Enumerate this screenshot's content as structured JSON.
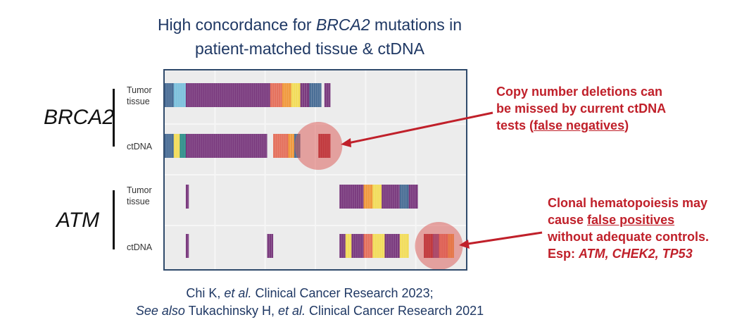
{
  "title": {
    "line1_prefix": "High concordance for ",
    "line1_gene": "BRCA2",
    "line1_suffix": " mutations in",
    "line2": "patient-matched tissue & ctDNA"
  },
  "genes": [
    {
      "name": "BRCA2",
      "rows": [
        "Tumor tissue",
        "ctDNA"
      ]
    },
    {
      "name": "ATM",
      "rows": [
        "Tumor tissue",
        "ctDNA"
      ]
    }
  ],
  "annotations": {
    "false_negatives": {
      "line1": "Copy number deletions can",
      "line2": "be missed by current ctDNA",
      "line3_prefix": "tests (",
      "line3_underlined": "false negatives",
      "line3_suffix": ")"
    },
    "false_positives": {
      "line1": "Clonal hematopoiesis may",
      "line2_prefix": "cause ",
      "line2_underlined": "false positives",
      "line3": "without adequate controls.",
      "line4_prefix": "Esp: ",
      "line4_genes": "ATM, CHEK2, TP53"
    }
  },
  "citation": {
    "line1_author": "Chi K, ",
    "line1_etal": "et al.",
    "line1_rest": " Clinical Cancer Research 2023;",
    "line2_see": "See also",
    "line2_author": " Tukachinsky H, ",
    "line2_etal": "et al.",
    "line2_rest": " Clinical Cancer Research 2021"
  },
  "colors": {
    "accent_red": "#c0202a",
    "title_blue": "#1f3864",
    "highlight_circle": "#d9534f",
    "purple": "#7a3a7e",
    "steel_blue": "#4a6e96",
    "light_blue": "#7cc0dc",
    "salmon": "#e4705c",
    "orange": "#f09a3e",
    "yellow": "#f2dc5a",
    "dark_red": "#a8202c",
    "teal": "#2f8f8a"
  },
  "chart_data": {
    "type": "heatmap",
    "x_range": [
      0,
      100
    ],
    "rows": [
      {
        "gene": "BRCA2",
        "sample": "Tumor tissue",
        "segments": [
          {
            "x0": 0,
            "x1": 3,
            "color": "steel_blue"
          },
          {
            "x0": 3,
            "x1": 7,
            "color": "light_blue"
          },
          {
            "x0": 7,
            "x1": 35,
            "color": "purple"
          },
          {
            "x0": 35,
            "x1": 39,
            "color": "salmon"
          },
          {
            "x0": 39,
            "x1": 42,
            "color": "orange"
          },
          {
            "x0": 42,
            "x1": 45,
            "color": "yellow"
          },
          {
            "x0": 45,
            "x1": 48,
            "color": "purple"
          },
          {
            "x0": 48,
            "x1": 52,
            "color": "steel_blue"
          },
          {
            "x0": 53,
            "x1": 55,
            "color": "purple"
          }
        ]
      },
      {
        "gene": "BRCA2",
        "sample": "ctDNA",
        "segments": [
          {
            "x0": 0,
            "x1": 3,
            "color": "steel_blue"
          },
          {
            "x0": 3,
            "x1": 5,
            "color": "yellow"
          },
          {
            "x0": 5,
            "x1": 7,
            "color": "teal"
          },
          {
            "x0": 7,
            "x1": 34,
            "color": "purple"
          },
          {
            "x0": 36,
            "x1": 41,
            "color": "salmon"
          },
          {
            "x0": 41,
            "x1": 43,
            "color": "orange"
          },
          {
            "x0": 43,
            "x1": 45,
            "color": "steel_blue"
          },
          {
            "x0": 51,
            "x1": 55,
            "color": "dark_red"
          }
        ]
      },
      {
        "gene": "ATM",
        "sample": "Tumor tissue",
        "segments": [
          {
            "x0": 7,
            "x1": 8,
            "color": "purple"
          },
          {
            "x0": 58,
            "x1": 66,
            "color": "purple"
          },
          {
            "x0": 66,
            "x1": 69,
            "color": "orange"
          },
          {
            "x0": 69,
            "x1": 72,
            "color": "yellow"
          },
          {
            "x0": 72,
            "x1": 78,
            "color": "purple"
          },
          {
            "x0": 78,
            "x1": 81,
            "color": "steel_blue"
          },
          {
            "x0": 81,
            "x1": 84,
            "color": "purple"
          }
        ]
      },
      {
        "gene": "ATM",
        "sample": "ctDNA",
        "segments": [
          {
            "x0": 7,
            "x1": 8,
            "color": "purple"
          },
          {
            "x0": 34,
            "x1": 36,
            "color": "purple"
          },
          {
            "x0": 58,
            "x1": 60,
            "color": "purple"
          },
          {
            "x0": 60,
            "x1": 62,
            "color": "yellow"
          },
          {
            "x0": 62,
            "x1": 66,
            "color": "purple"
          },
          {
            "x0": 66,
            "x1": 69,
            "color": "salmon"
          },
          {
            "x0": 69,
            "x1": 73,
            "color": "yellow"
          },
          {
            "x0": 73,
            "x1": 78,
            "color": "purple"
          },
          {
            "x0": 78,
            "x1": 81,
            "color": "yellow"
          },
          {
            "x0": 86,
            "x1": 89,
            "color": "dark_red"
          },
          {
            "x0": 89,
            "x1": 91,
            "color": "purple"
          },
          {
            "x0": 91,
            "x1": 94,
            "color": "salmon"
          },
          {
            "x0": 94,
            "x1": 96,
            "color": "orange"
          }
        ]
      }
    ],
    "highlights": [
      {
        "row": 1,
        "x": 51
      },
      {
        "row": 3,
        "x": 91
      }
    ]
  }
}
